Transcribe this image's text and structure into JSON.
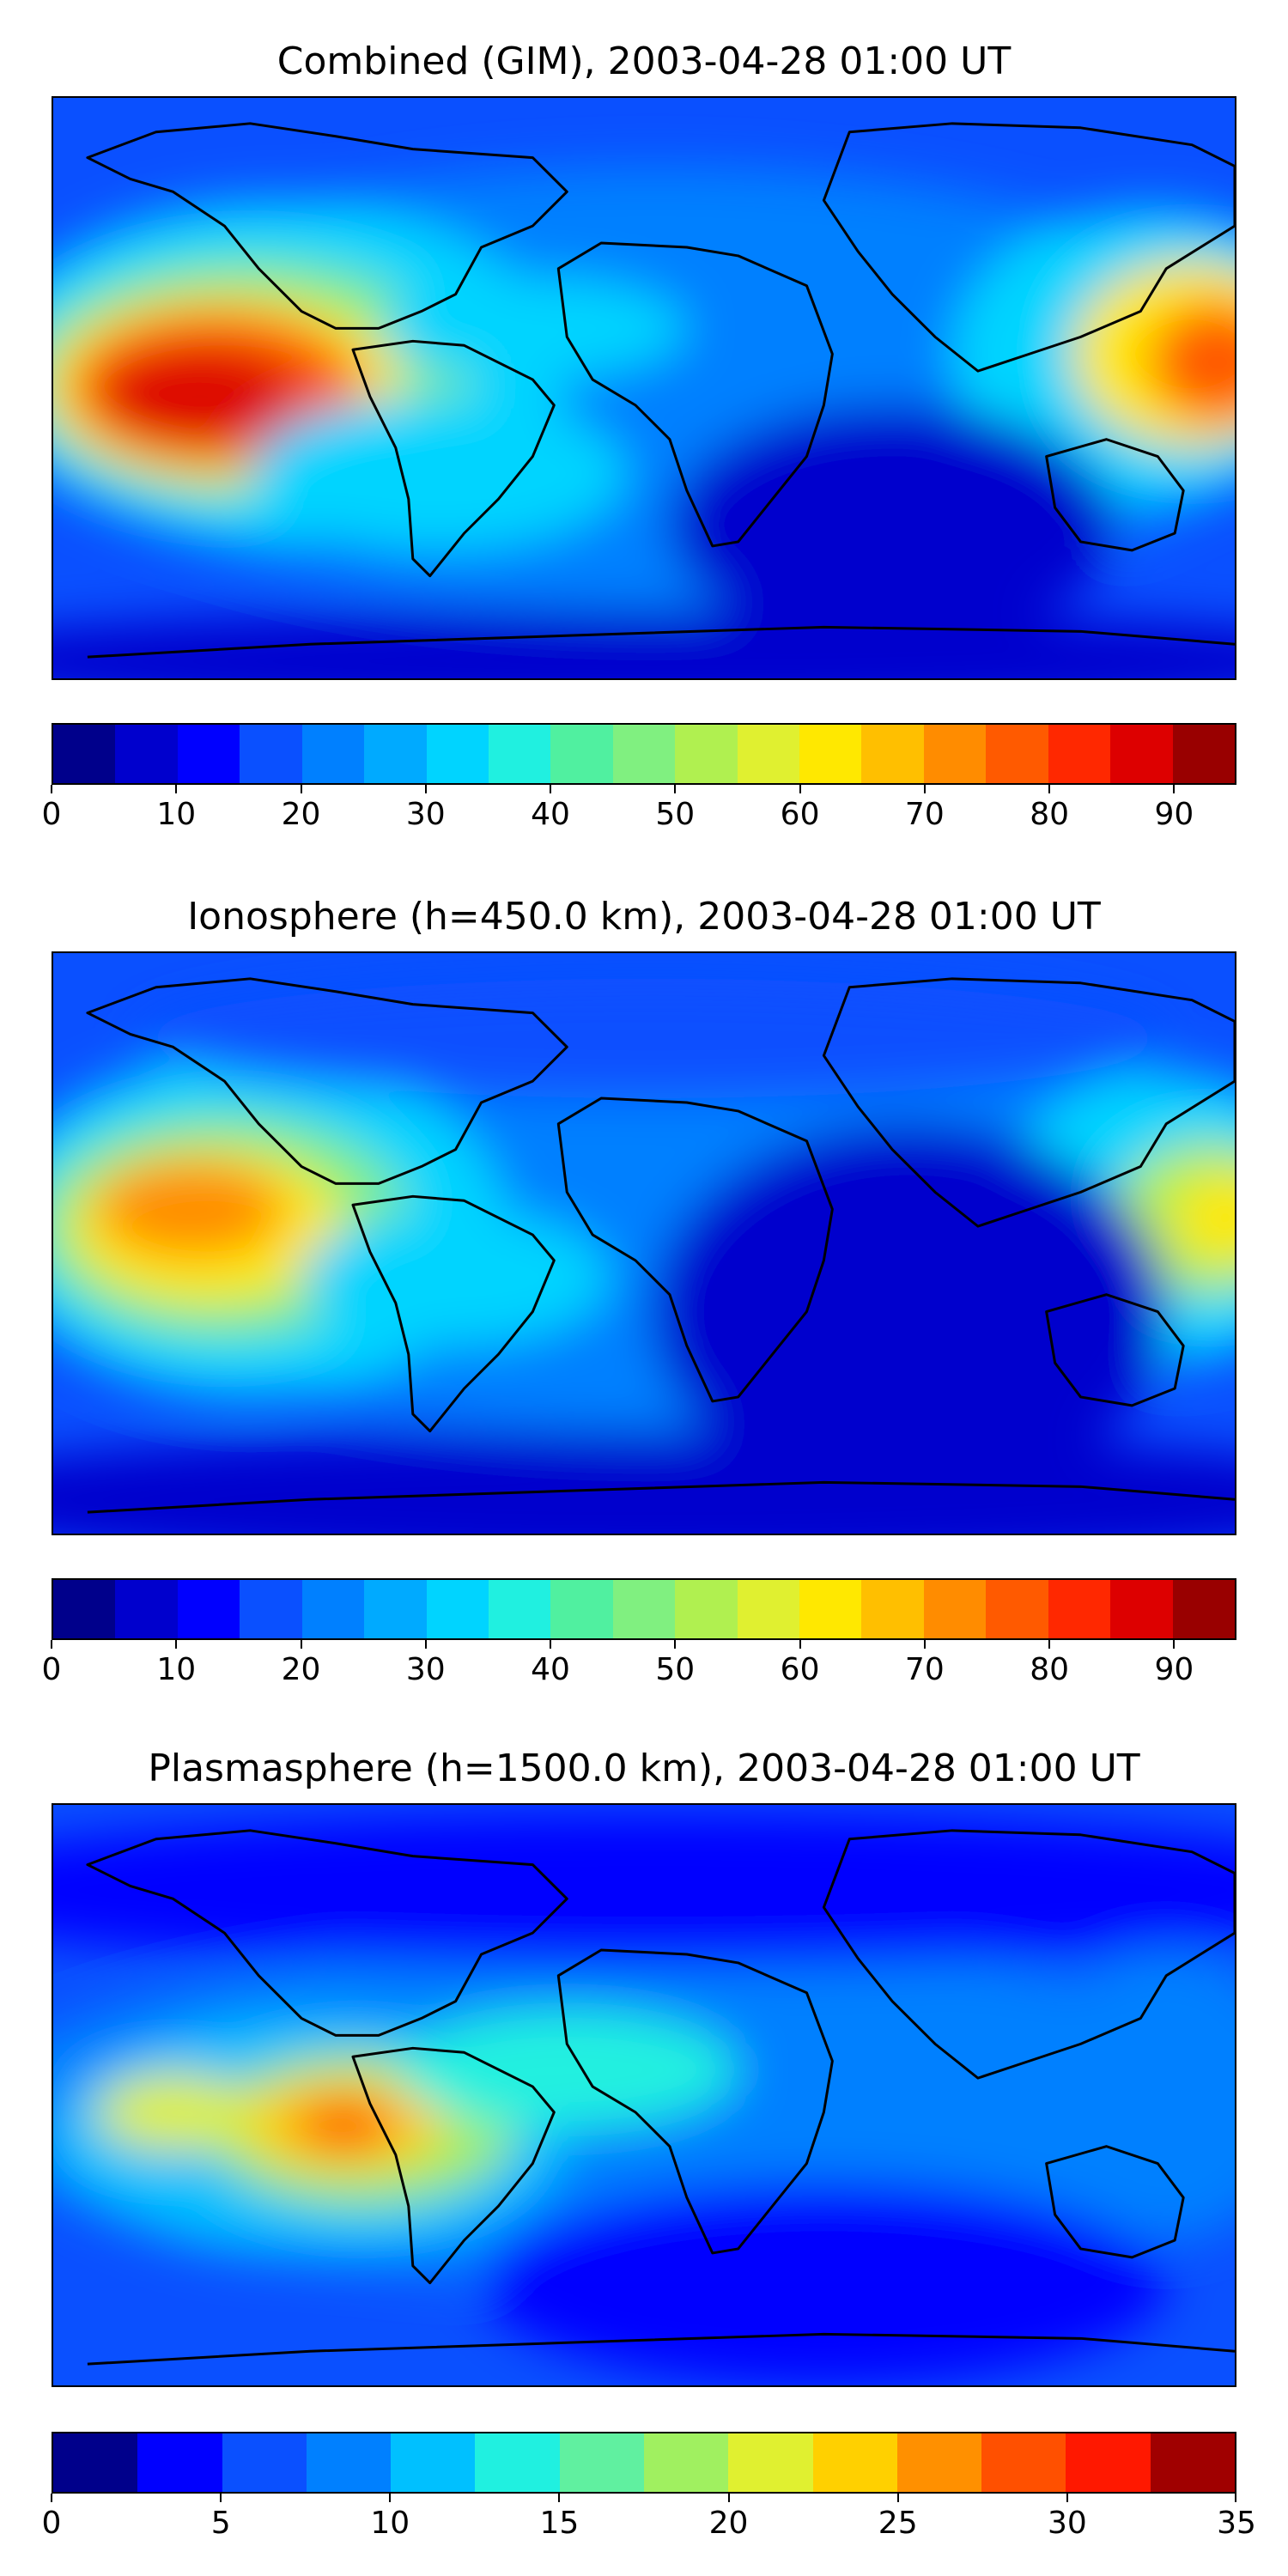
{
  "panels": [
    {
      "title": "Combined (GIM), 2003-04-28 01:00 UT",
      "colorbar": {
        "min": 0,
        "max": 95,
        "step": 5,
        "tick_labels": [
          "0",
          "10",
          "20",
          "30",
          "40",
          "50",
          "60",
          "70",
          "80",
          "90"
        ],
        "tick_values": [
          0,
          10,
          20,
          30,
          40,
          50,
          60,
          70,
          80,
          90
        ],
        "colors": [
          "#00008b",
          "#0000cd",
          "#0000ff",
          "#0a50ff",
          "#0080ff",
          "#00aaff",
          "#00d4ff",
          "#20f0e0",
          "#50f0a0",
          "#80f080",
          "#b0f050",
          "#e0f030",
          "#ffe800",
          "#ffbf00",
          "#ff8c00",
          "#ff5a00",
          "#ff2800",
          "#dd0000",
          "#990000"
        ]
      }
    },
    {
      "title": "Ionosphere  (h=450.0 km), 2003-04-28 01:00 UT",
      "colorbar": {
        "min": 0,
        "max": 95,
        "step": 5,
        "tick_labels": [
          "0",
          "10",
          "20",
          "30",
          "40",
          "50",
          "60",
          "70",
          "80",
          "90"
        ],
        "tick_values": [
          0,
          10,
          20,
          30,
          40,
          50,
          60,
          70,
          80,
          90
        ],
        "colors": [
          "#00008b",
          "#0000cd",
          "#0000ff",
          "#0a50ff",
          "#0080ff",
          "#00aaff",
          "#00d4ff",
          "#20f0e0",
          "#50f0a0",
          "#80f080",
          "#b0f050",
          "#e0f030",
          "#ffe800",
          "#ffbf00",
          "#ff8c00",
          "#ff5a00",
          "#ff2800",
          "#dd0000",
          "#990000"
        ]
      }
    },
    {
      "title": "Plasmasphere (h=1500.0 km), 2003-04-28 01:00 UT",
      "colorbar": {
        "min": 0,
        "max": 35,
        "step": 2.5,
        "tick_labels": [
          "0",
          "5",
          "10",
          "15",
          "20",
          "25",
          "30",
          "35"
        ],
        "tick_values": [
          0,
          5,
          10,
          15,
          20,
          25,
          30,
          35
        ],
        "colors": [
          "#00008b",
          "#0000ff",
          "#0a50ff",
          "#0080ff",
          "#00c0ff",
          "#20f0e0",
          "#60f0a0",
          "#a0f060",
          "#e0f030",
          "#ffd000",
          "#ff9000",
          "#ff5000",
          "#ff1800",
          "#a00000"
        ]
      }
    }
  ]
}
